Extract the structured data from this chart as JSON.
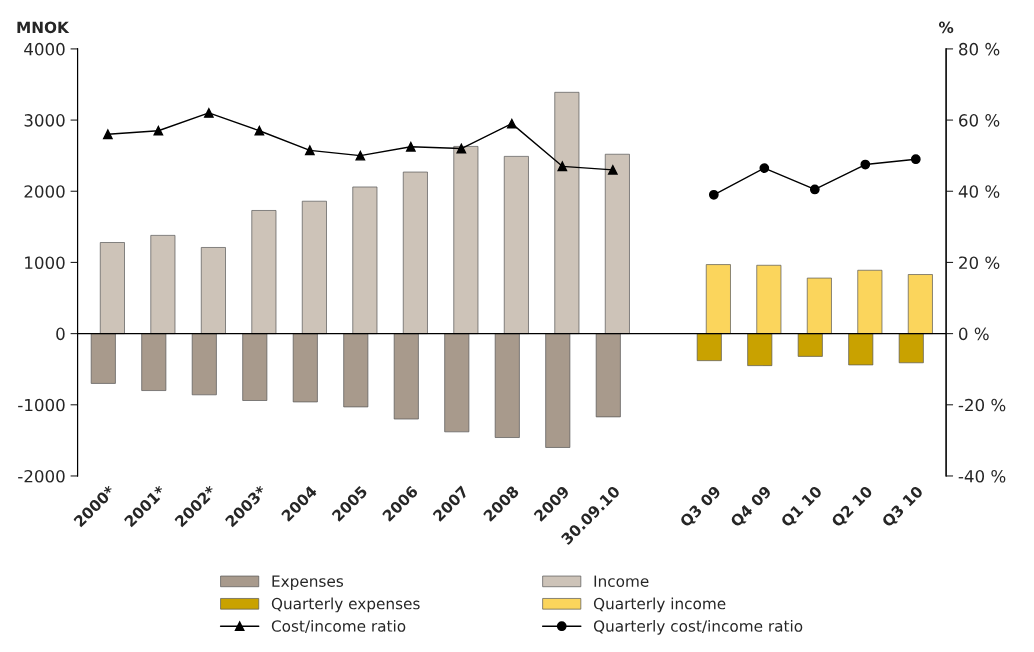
{
  "chart_data": {
    "type": "bar",
    "ylabel": "MNOK",
    "y2label": "%",
    "categories": [
      "2000*",
      "2001*",
      "2002*",
      "2003*",
      "2004",
      "2005",
      "2006",
      "2007",
      "2008",
      "2009",
      "30.09.10",
      null,
      "Q3 09",
      "Q4 09",
      "Q1 10",
      "Q2 10",
      "Q3 10"
    ],
    "series": [
      {
        "name": "Expenses",
        "color": "#a89a8c",
        "values": [
          -700,
          -800,
          -860,
          -940,
          -960,
          -1030,
          -1200,
          -1380,
          -1460,
          -1600,
          -1170,
          null,
          null,
          null,
          null,
          null,
          null
        ]
      },
      {
        "name": "Income",
        "color": "#cdc3b8",
        "values": [
          1280,
          1380,
          1210,
          1730,
          1860,
          2060,
          2270,
          2630,
          2490,
          3390,
          2520,
          null,
          null,
          null,
          null,
          null,
          null
        ]
      },
      {
        "name": "Quarterly expenses",
        "color": "#c9a200",
        "values": [
          null,
          null,
          null,
          null,
          null,
          null,
          null,
          null,
          null,
          null,
          null,
          null,
          -380,
          -450,
          -320,
          -440,
          -410
        ]
      },
      {
        "name": "Quarterly income",
        "color": "#fbd55c",
        "values": [
          null,
          null,
          null,
          null,
          null,
          null,
          null,
          null,
          null,
          null,
          null,
          null,
          970,
          960,
          780,
          890,
          830
        ]
      },
      {
        "name": "Cost/income ratio",
        "type": "line",
        "axis": "y2",
        "color": "#000000",
        "marker": "triangle",
        "values": [
          56,
          57,
          62,
          57,
          51.5,
          50,
          52.5,
          52,
          59,
          47,
          46,
          null,
          null,
          null,
          null,
          null,
          null
        ]
      },
      {
        "name": "Quarterly cost/income ratio",
        "type": "line",
        "axis": "y2",
        "color": "#000000",
        "marker": "circle",
        "values": [
          null,
          null,
          null,
          null,
          null,
          null,
          null,
          null,
          null,
          null,
          null,
          null,
          39,
          46.5,
          40.5,
          47.5,
          49
        ]
      }
    ],
    "ylim": [
      -2000,
      4000
    ],
    "yticks": [
      -2000,
      -1000,
      0,
      1000,
      2000,
      3000,
      4000
    ],
    "y2lim": [
      -40,
      80
    ],
    "y2ticks": [
      {
        "value": -40,
        "label": "-40 %"
      },
      {
        "value": -20,
        "label": "-20 %"
      },
      {
        "value": 0,
        "label": "0 %"
      },
      {
        "value": 20,
        "label": "20 %"
      },
      {
        "value": 40,
        "label": "40 %"
      },
      {
        "value": 60,
        "label": "60 %"
      },
      {
        "value": 80,
        "label": "80 %"
      }
    ],
    "legend": "bottom"
  }
}
